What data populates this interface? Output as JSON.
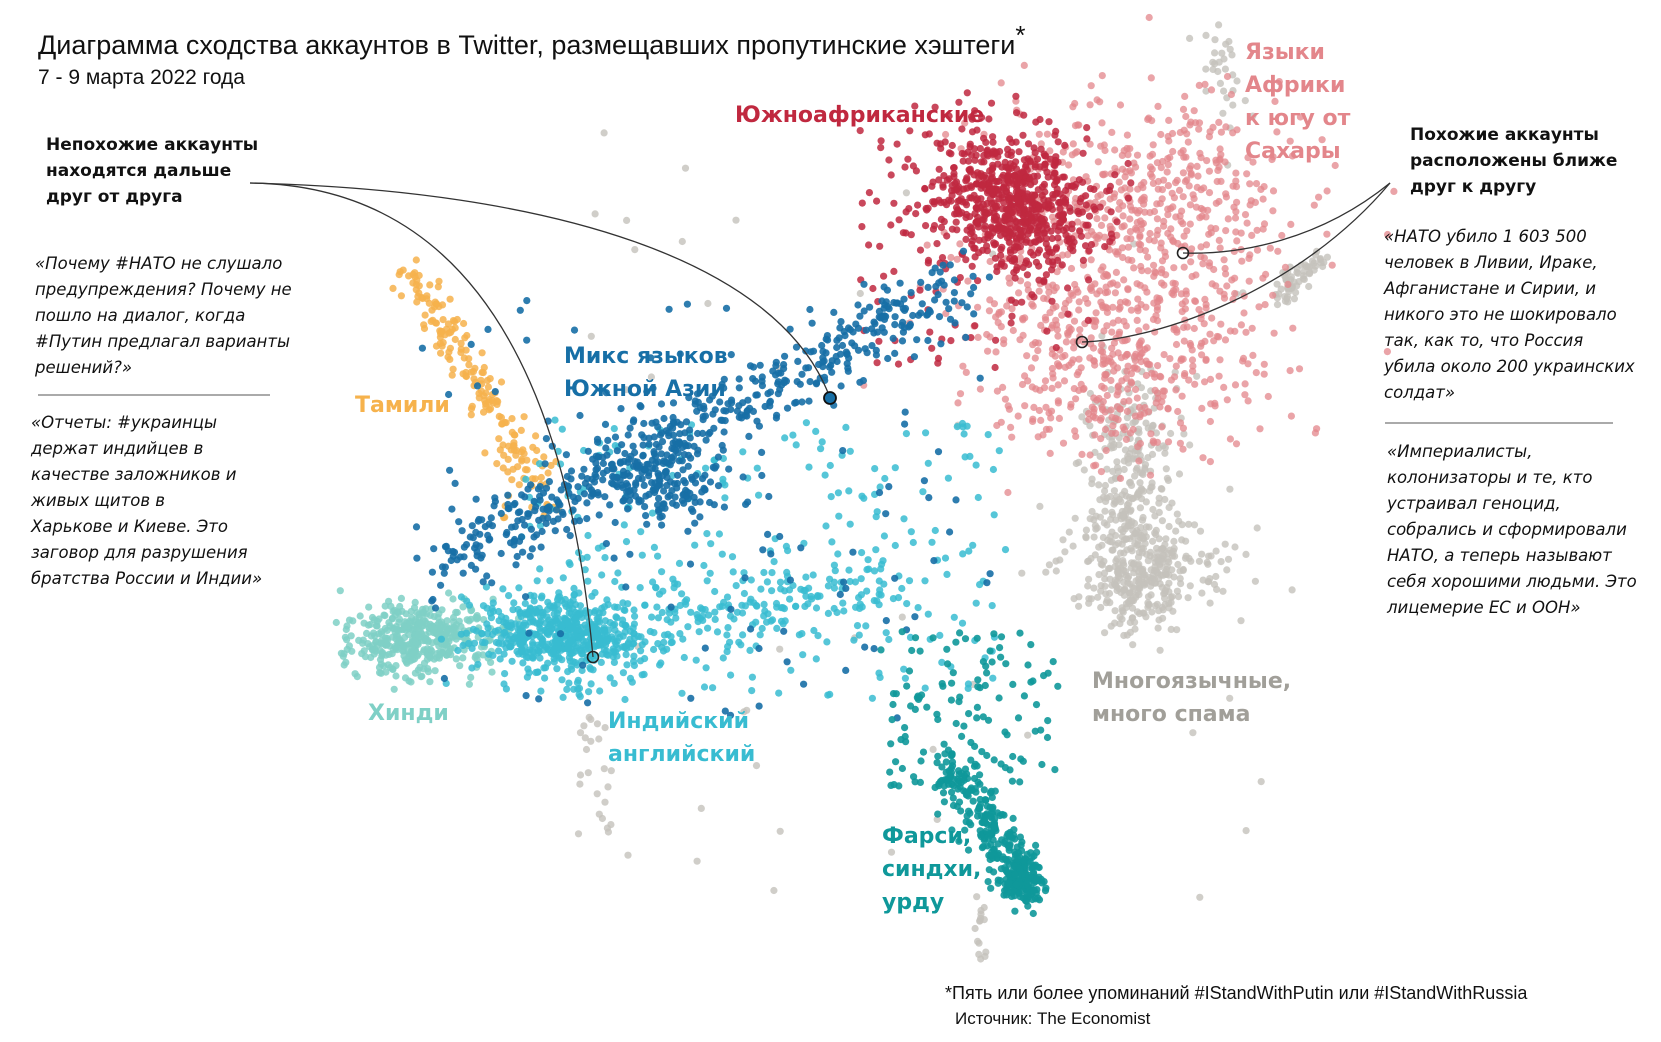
{
  "title": "Диаграмма сходства аккаунтов в Twitter, размещавших пропутинские хэштеги",
  "title_mark": "*",
  "subtitle": "7 - 9 марта 2022 года",
  "annotations": {
    "dissimilar": "Непохожие аккаунты\nнаходятся дальше\nдруг от друга",
    "similar": "Похожие аккаунты\nрасположены ближе\nдруг к другу"
  },
  "quotes": [
    "«Почему #НАТО не слушало\nпредупреждения? Почему не\nпошло на диалог, когда\n#Путин предлагал варианты\nрешений?»",
    "«Отчеты: #украинцы\nдержат индийцев в\nкачестве заложников и\nживых щитов в\nХарькове и Киеве.  Это\nзаговор для разрушения\nбратства России и Индии»",
    "«НАТО убило 1 603 500\nчеловек в Ливии, Ираке,\nАфганистане и Сирии, и\nникого это не шокировало\nтак, как то, что Россия\nубила около 200 украинских\nсолдат»",
    "«Империалисты,\nколонизаторы и те, кто\nустраивал геноцид,\nсобрались и сформировали\nНАТО, а теперь называют\nсебя хорошими людьми. Это\nлицемерие ЕС и ООН»"
  ],
  "footnote": "*Пять или более упоминаний #IStandWithPutin или #IStandWithRussia",
  "source": "Источник: The Economist",
  "chart_data": {
    "type": "scatter",
    "title": "Диаграмма сходства аккаунтов в Twitter, размещавших пропутинские хэштеги",
    "subtitle": "7 - 9 марта 2022 года",
    "axes": "none",
    "grid": false,
    "legend": "inline labels",
    "clusters": [
      {
        "id": "south_african",
        "name": "Южноафриканские",
        "color": "#c0283f"
      },
      {
        "id": "african",
        "name": "Языки\nАфрики\nк югу от\nСахары",
        "color": "#e3868b"
      },
      {
        "id": "multilingual",
        "name": "Многоязычные,\nмного спама",
        "color": "#c4c2bc"
      },
      {
        "id": "tamil",
        "name": "Тамили",
        "color": "#f6b24c"
      },
      {
        "id": "south_asia_mix",
        "name": "Микс языков\nЮжной Азии",
        "color": "#176fa6"
      },
      {
        "id": "indian_english",
        "name": "Индийский\nанглийский",
        "color": "#38bcd1"
      },
      {
        "id": "hindi",
        "name": "Хинди",
        "color": "#7fd0c6"
      },
      {
        "id": "farsi",
        "name": "Фарси,\nсиндхи,\nурду",
        "color": "#0f989a"
      }
    ]
  }
}
